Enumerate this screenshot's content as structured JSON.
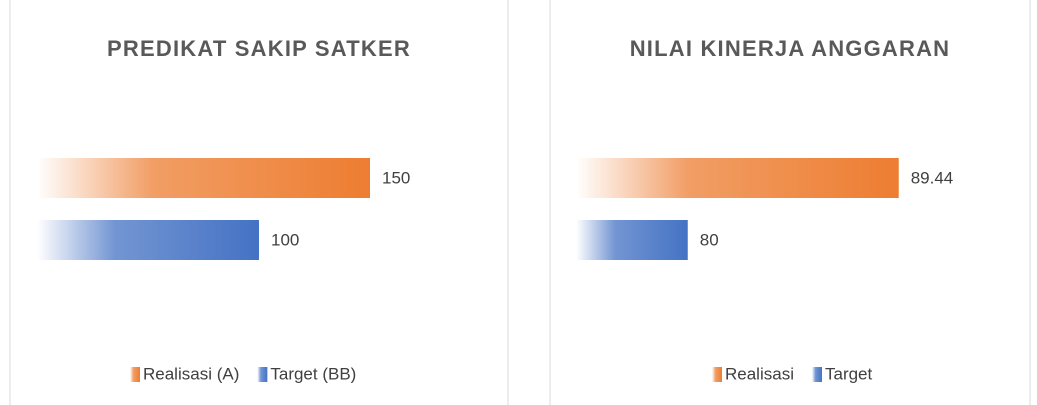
{
  "chart_data": [
    {
      "type": "bar",
      "title": "PREDIKAT SAKIP SATKER",
      "series": [
        {
          "name": "Realisasi (A)",
          "color": "#ed7d31",
          "values": [
            150
          ]
        },
        {
          "name": "Target (BB)",
          "color": "#4472c4",
          "values": [
            100
          ]
        }
      ],
      "xlim": [
        0,
        200
      ],
      "legend": "bottom"
    },
    {
      "type": "bar",
      "title": "NILAI KINERJA ANGGARAN",
      "series": [
        {
          "name": "Realisasi",
          "color": "#ed7d31",
          "values": [
            89.44
          ]
        },
        {
          "name": "Target",
          "color": "#4472c4",
          "values": [
            80
          ]
        }
      ],
      "xlim": [
        75,
        95
      ],
      "legend": "bottom"
    }
  ]
}
